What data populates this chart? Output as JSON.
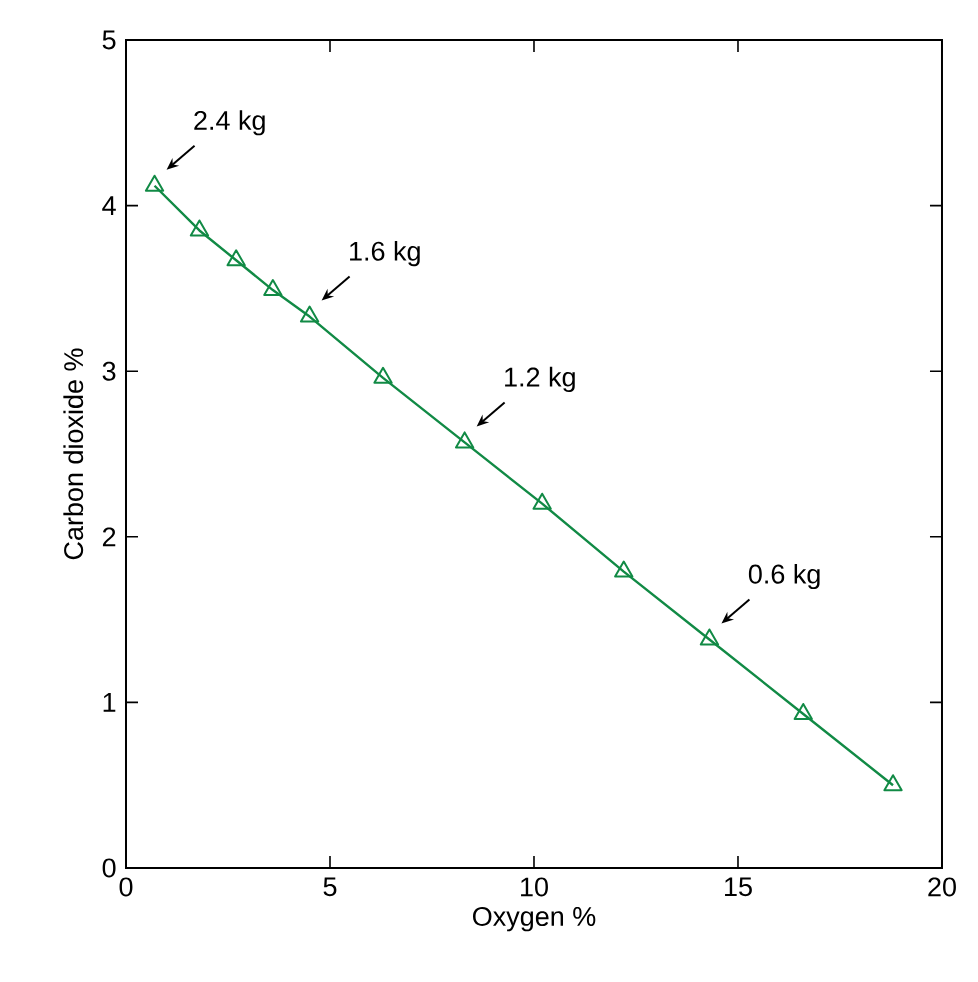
{
  "chart_data": {
    "type": "line",
    "xlabel": "Oxygen %",
    "ylabel": "Carbon dioxide %",
    "x": [
      0.7,
      1.8,
      2.7,
      3.6,
      4.5,
      6.3,
      8.3,
      10.2,
      12.2,
      14.3,
      16.6,
      18.8
    ],
    "series": [
      {
        "color": "#118a45",
        "values": [
          4.12,
          3.85,
          3.67,
          3.49,
          3.33,
          2.96,
          2.57,
          2.2,
          1.79,
          1.38,
          0.93,
          0.5
        ]
      }
    ],
    "marker": "triangle",
    "line_style": "solid",
    "xlim": [
      0,
      20
    ],
    "ylim": [
      0,
      5
    ],
    "xticks": [
      0,
      5,
      10,
      15,
      20
    ],
    "yticks": [
      0,
      1,
      2,
      3,
      4,
      5
    ],
    "grid": false,
    "annotations": [
      {
        "text": "2.4 kg",
        "x": 0.7,
        "y": 4.12
      },
      {
        "text": "1.6 kg",
        "x": 4.5,
        "y": 3.33
      },
      {
        "text": "1.2 kg",
        "x": 8.3,
        "y": 2.57
      },
      {
        "text": "0.6 kg",
        "x": 14.3,
        "y": 1.38
      }
    ]
  }
}
